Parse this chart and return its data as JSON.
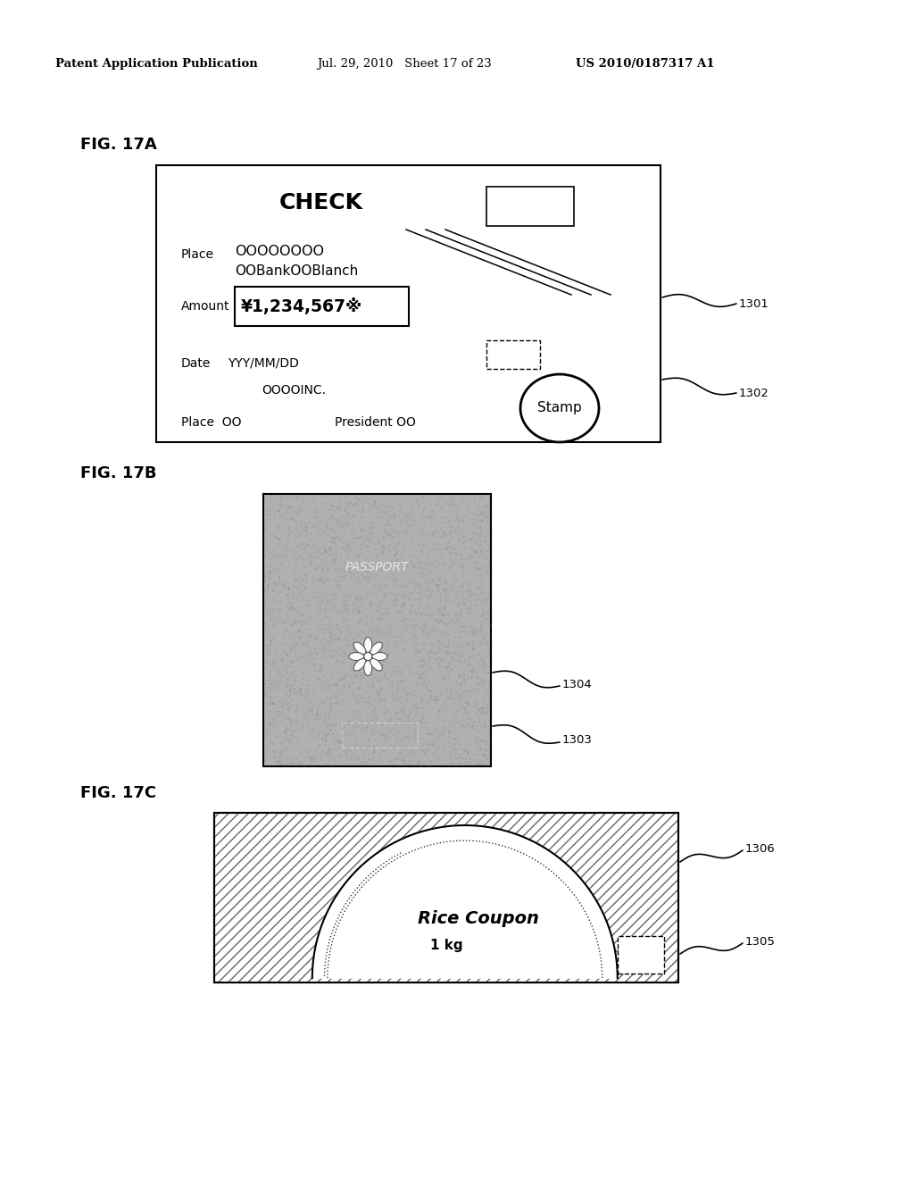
{
  "header_left": "Patent Application Publication",
  "header_mid": "Jul. 29, 2010   Sheet 17 of 23",
  "header_right": "US 2010/0187317 A1",
  "fig17a_label": "FIG. 17A",
  "fig17b_label": "FIG. 17B",
  "fig17c_label": "FIG. 17C",
  "check_title": "CHECK",
  "check_place_label": "Place",
  "check_place_circles": "OOOOOOOO",
  "check_place_bank": "OOBankOOBlanch",
  "check_amount_label": "Amount",
  "check_amount_value": "¥1,234,567××",
  "check_date_label": "Date",
  "check_date_value": "YYY/MM/DD",
  "check_company": "OOOOINC.",
  "check_place2": "Place  OO",
  "check_president": "President OO",
  "check_stamp": "Stamp",
  "ref_1301": "1301",
  "ref_1302": "1302",
  "ref_1303": "1303",
  "ref_1304": "1304",
  "ref_1305": "1305",
  "ref_1306": "1306",
  "passport_text": "PASSPORT",
  "rice_coupon_text": "Rice Coupon",
  "rice_coupon_unit": "1 kg",
  "bg_color": "#ffffff",
  "fg_color": "#000000",
  "passport_gray": "#b0b0b0"
}
